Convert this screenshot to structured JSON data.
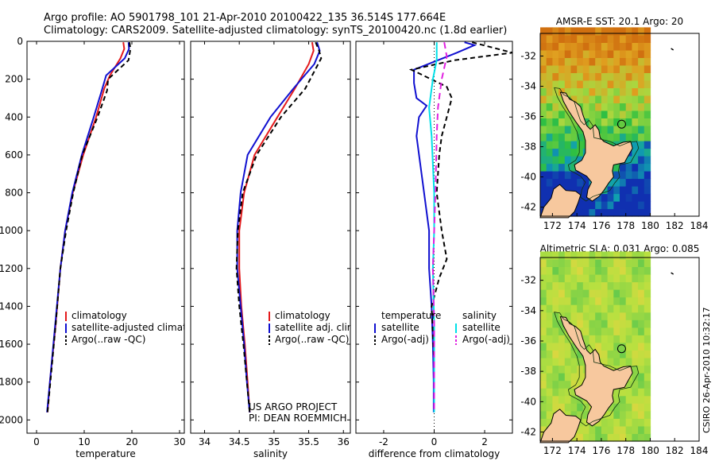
{
  "header": {
    "line1": "Argo profile: AO 5901798_101 21-Apr-2010 20100422_135 36.514S 177.664E",
    "line2": "Climatology: CARS2009. Satellite-adjusted climatology: synTS_20100420.nc (1.8d earlier)"
  },
  "colors": {
    "clim": "#e41a1c",
    "sat": "#1010d0",
    "argo": "#000000",
    "cyan": "#00e0e8",
    "magenta": "#e020e0"
  },
  "chart_data": [
    {
      "type": "line",
      "id": "temperature",
      "xlabel": "temperature",
      "ylabel": "",
      "xlim": [
        -2,
        31
      ],
      "ylim": [
        2070,
        0
      ],
      "xticks": [
        0,
        10,
        20,
        30
      ],
      "yticks": [
        0,
        200,
        400,
        600,
        800,
        1000,
        1200,
        1400,
        1600,
        1800,
        2000
      ],
      "series": [
        {
          "name": "climatology",
          "color": "#e41a1c",
          "dash": "",
          "x": [
            18.2,
            18.4,
            17.6,
            15.4,
            14.2,
            12.5,
            9.8,
            7.6,
            6.0,
            5.0,
            4.0,
            2.8,
            2.3
          ],
          "y": [
            5,
            40,
            90,
            180,
            250,
            400,
            600,
            800,
            1000,
            1200,
            1500,
            1800,
            1960
          ]
        },
        {
          "name": "satellite-adjusted climatology",
          "color": "#1010d0",
          "dash": "",
          "x": [
            19.3,
            19.4,
            18.5,
            14.6,
            13.8,
            12.0,
            9.5,
            7.5,
            6.0,
            5.0,
            3.9,
            2.8,
            2.2
          ],
          "y": [
            5,
            40,
            90,
            180,
            250,
            400,
            600,
            800,
            1000,
            1200,
            1500,
            1800,
            1960
          ]
        },
        {
          "name": "Argo(..raw -QC)",
          "color": "#000000",
          "dash": "6,4",
          "x": [
            19.5,
            19.7,
            19.3,
            15.0,
            14.8,
            12.8,
            9.6,
            7.7,
            6.2,
            5.0,
            4.0,
            2.9,
            2.3
          ],
          "y": [
            5,
            40,
            100,
            200,
            260,
            400,
            600,
            800,
            1000,
            1200,
            1500,
            1800,
            1960
          ]
        }
      ],
      "legend": [
        "climatology",
        "satellite-adjusted climatology",
        "Argo(..raw -QC)"
      ]
    },
    {
      "type": "line",
      "id": "salinity",
      "xlabel": "salinity",
      "ylabel": "",
      "xlim": [
        33.8,
        36.1
      ],
      "ylim": [
        2070,
        0
      ],
      "xticks": [
        34,
        34.5,
        35,
        35.5,
        36
      ],
      "yticks": [
        0,
        200,
        400,
        600,
        800,
        1000,
        1200,
        1400,
        1600,
        1800,
        2000
      ],
      "series": [
        {
          "name": "climatology",
          "color": "#e41a1c",
          "dash": "",
          "x": [
            35.55,
            35.57,
            35.5,
            35.3,
            35.05,
            34.72,
            34.57,
            34.5,
            34.5,
            34.53,
            34.58,
            34.62,
            34.65
          ],
          "y": [
            5,
            50,
            120,
            250,
            400,
            600,
            800,
            1000,
            1200,
            1400,
            1600,
            1800,
            1960
          ]
        },
        {
          "name": "satellite adj. clim.",
          "color": "#1010d0",
          "dash": "",
          "x": [
            35.62,
            35.66,
            35.58,
            35.28,
            34.95,
            34.62,
            34.52,
            34.47,
            34.47,
            34.52,
            34.57,
            34.61,
            34.65
          ],
          "y": [
            5,
            50,
            120,
            250,
            400,
            600,
            800,
            1000,
            1200,
            1400,
            1600,
            1800,
            1960
          ]
        },
        {
          "name": "Argo(..raw -QC)",
          "color": "#000000",
          "dash": "6,4",
          "x": [
            35.6,
            35.65,
            35.68,
            35.45,
            35.1,
            34.75,
            34.55,
            34.48,
            34.46,
            34.5,
            34.56,
            34.61,
            34.65
          ],
          "y": [
            5,
            50,
            90,
            250,
            400,
            600,
            800,
            1000,
            1200,
            1400,
            1600,
            1800,
            1960
          ]
        }
      ],
      "legend": [
        "climatology",
        "satellite adj. clim.",
        "Argo(..raw -QC)"
      ],
      "annotation": [
        "US ARGO PROJECT",
        "PI: DEAN ROEMMICH"
      ]
    },
    {
      "type": "line",
      "id": "difference",
      "xlabel": "difference from climatology",
      "ylabel": "",
      "xlim": [
        -3.1,
        3.1
      ],
      "ylim": [
        2070,
        0
      ],
      "xticks": [
        -2,
        0,
        2
      ],
      "yticks": [
        0,
        200,
        400,
        600,
        800,
        1000,
        1200,
        1400,
        1600,
        1800,
        2000
      ],
      "series": [
        {
          "name": "temperature satellite",
          "color": "#1010d0",
          "dash": "",
          "x": [
            1.2,
            1.6,
            0.9,
            -0.8,
            -0.8,
            -0.7,
            -0.3,
            -0.6,
            -0.7,
            -0.4,
            -0.2,
            -0.2,
            -0.1,
            -0.05,
            -0.02,
            -0.02
          ],
          "y": [
            5,
            20,
            60,
            150,
            220,
            300,
            340,
            400,
            500,
            800,
            1000,
            1200,
            1400,
            1600,
            1800,
            1960
          ]
        },
        {
          "name": "temperature Argo(-adj)",
          "color": "#000000",
          "dash": "6,4",
          "x": [
            1.5,
            3.1,
            0.8,
            -0.9,
            0.5,
            0.7,
            0.5,
            0.3,
            0.2,
            0.1,
            0.3,
            0.5,
            0.2,
            -0.1,
            0.0,
            0.0
          ],
          "y": [
            5,
            60,
            100,
            150,
            240,
            300,
            400,
            500,
            600,
            800,
            1000,
            1150,
            1250,
            1400,
            1700,
            1960
          ]
        },
        {
          "name": "salinity satellite",
          "color": "#00e0e8",
          "dash": "",
          "x": [
            0.1,
            0.1,
            -0.05,
            -0.2,
            -0.1,
            0.0,
            0.0,
            -0.05,
            0.0,
            0.0
          ],
          "y": [
            5,
            100,
            200,
            350,
            500,
            800,
            1000,
            1200,
            1500,
            1960
          ]
        },
        {
          "name": "salinity Argo(-adj)",
          "color": "#e020e0",
          "dash": "8,5",
          "x": [
            0.4,
            0.5,
            0.3,
            0.15,
            0.1,
            0.05,
            0.0,
            -0.05,
            0.0,
            0.0
          ],
          "y": [
            5,
            80,
            200,
            350,
            500,
            800,
            1000,
            1200,
            1500,
            1960
          ]
        }
      ],
      "legend_headers": [
        "temperature",
        "salinity"
      ],
      "legend": [
        "satellite",
        "Argo(-adj)",
        "satellite",
        "Argo(-adj)"
      ]
    },
    {
      "type": "heatmap",
      "id": "sst",
      "title": "AMSR-E SST: 20.1  Argo: 20",
      "xlim": [
        171,
        184
      ],
      "ylim": [
        -42.6,
        -30.5
      ],
      "xticks": [
        172,
        174,
        176,
        178,
        180,
        182,
        184
      ],
      "yticks": [
        -32,
        -34,
        -36,
        -38,
        -40,
        -42
      ],
      "argo_position": [
        177.66,
        -36.51
      ]
    },
    {
      "type": "heatmap",
      "id": "sla",
      "title": "Altimetric SLA: 0.031  Argo: 0.085",
      "xlim": [
        171,
        184
      ],
      "ylim": [
        -42.6,
        -30.5
      ],
      "xticks": [
        172,
        174,
        176,
        178,
        180,
        182,
        184
      ],
      "yticks": [
        -32,
        -34,
        -36,
        -38,
        -40,
        -42
      ],
      "argo_position": [
        177.66,
        -36.51
      ]
    }
  ],
  "footer": {
    "stamp": "CSIRO  26-Apr-2010 10:32:17"
  }
}
